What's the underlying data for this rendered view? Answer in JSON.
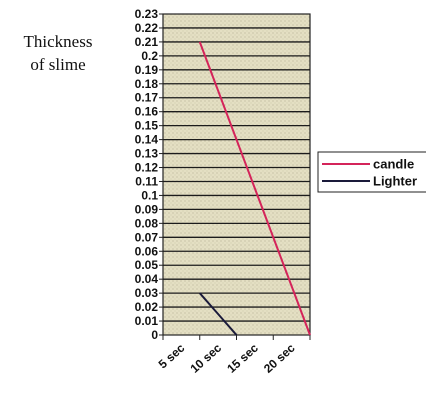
{
  "chart_data": {
    "type": "line",
    "title": "",
    "ylabel_lines": [
      "Thickness",
      "of slime"
    ],
    "xlabel": "",
    "categories": [
      "5 sec",
      "10 sec",
      "15 sec",
      "20 sec"
    ],
    "ylim": [
      0,
      0.23
    ],
    "yticks": [
      "0.23",
      "0.22",
      "0.21",
      "0.2",
      "0.19",
      "0.18",
      "0.17",
      "0.16",
      "0.15",
      "0.14",
      "0.13",
      "0.12",
      "0.11",
      "0.1",
      "0.09",
      "0.08",
      "0.07",
      "0.06",
      "0.05",
      "0.04",
      "0.03",
      "0.02",
      "0.01",
      "0"
    ],
    "grid": true,
    "legend_position": "right",
    "series": [
      {
        "name": "candle",
        "color": "#d4245a",
        "points": [
          [
            0.5,
            0.21
          ],
          [
            3.5,
            0.0
          ]
        ]
      },
      {
        "name": "Lighter",
        "color": "#1a1a3a",
        "points": [
          [
            0.5,
            0.03
          ],
          [
            1.5,
            0.0
          ]
        ]
      }
    ]
  }
}
